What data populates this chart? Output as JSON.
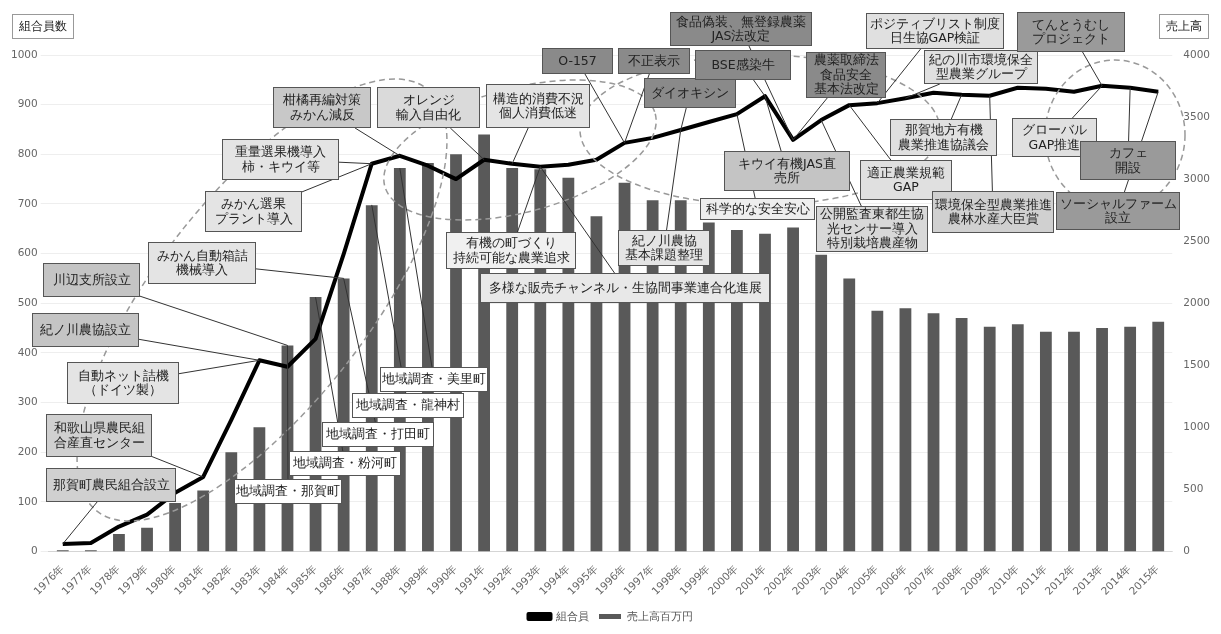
{
  "chart_data": {
    "type": "bar",
    "ylabel": "組合員数",
    "y2label": "売上高",
    "categories": [
      "1976年",
      "1977年",
      "1978年",
      "1979年",
      "1980年",
      "1981年",
      "1982年",
      "1983年",
      "1984年",
      "1985年",
      "1986年",
      "1987年",
      "1988年",
      "1989年",
      "1990年",
      "1991年",
      "1992年",
      "1993年",
      "1994年",
      "1995年",
      "1996年",
      "1997年",
      "1998年",
      "1999年",
      "2000年",
      "2001年",
      "2002年",
      "2003年",
      "2004年",
      "2005年",
      "2006年",
      "2007年",
      "2008年",
      "2009年",
      "2010年",
      "2011年",
      "2012年",
      "2013年",
      "2014年",
      "2015年"
    ],
    "series": [
      {
        "name": "売上高百万円",
        "axis": "y2",
        "color": "#595959",
        "values": [
          10,
          10,
          140,
          190,
          390,
          490,
          800,
          1000,
          1660,
          2050,
          2200,
          2790,
          3090,
          3130,
          3200,
          3360,
          3090,
          3080,
          3010,
          2700,
          2970,
          2830,
          2830,
          2650,
          2590,
          2560,
          2610,
          2390,
          2200,
          1940,
          1960,
          1920,
          1880,
          1810,
          1830,
          1770,
          1770,
          1800,
          1810,
          1850
        ]
      },
      {
        "name": "組合員",
        "type": "line",
        "color": "#000000",
        "values": [
          15,
          17,
          50,
          74,
          118,
          150,
          265,
          385,
          372,
          428,
          599,
          781,
          797,
          777,
          750,
          789,
          781,
          775,
          779,
          789,
          823,
          833,
          849,
          865,
          881,
          917,
          829,
          869,
          899,
          903,
          913,
          924,
          920,
          918,
          934,
          932,
          926,
          938,
          934,
          926
        ]
      }
    ],
    "ylim": [
      0,
      1000
    ],
    "yticks": [
      0,
      100,
      200,
      300,
      400,
      500,
      600,
      700,
      800,
      900,
      1000
    ],
    "y2lim": [
      0,
      4000
    ],
    "y2ticks": [
      0,
      500,
      1000,
      1500,
      2000,
      2500,
      3000,
      3500,
      4000
    ],
    "grid": "y",
    "legend": "bottom",
    "marker": "none",
    "annotations": [
      {
        "text": "那賀町農民組合設立",
        "x": "1976年",
        "y": 15
      },
      {
        "text": "和歌山県農民組合産直センター",
        "x": "1981年",
        "y": 150
      },
      {
        "text": "自動ネット詰機（ドイツ製）",
        "x": "1983年",
        "y": 385
      },
      {
        "text": "紀ノ川農協設立",
        "x": "1983年",
        "y": 385
      },
      {
        "text": "川辺支所設立",
        "x": "1984年",
        "y": 415
      },
      {
        "text": "みかん自動箱詰機械導入",
        "x": "1986年",
        "y": 550
      },
      {
        "text": "みかん選果プラント導入",
        "x": "1987年",
        "y": 781
      },
      {
        "text": "重量選果機導入柿・キウイ等",
        "x": "1987年",
        "y": 781
      },
      {
        "text": "柑橘再編対策みかん減反",
        "x": "1988年",
        "y": 797
      },
      {
        "text": "オレンジ輸入自由化",
        "x": "1991年",
        "y": 789
      },
      {
        "text": "構造的消費不況個人消費低迷",
        "x": "1992年",
        "y": 781
      },
      {
        "text": "有機の町づくり持続可能な農業追求",
        "x": "1993年",
        "y": 775
      },
      {
        "text": "多様な販売チャンネル・生協間事業連合化進展",
        "x": "1993年",
        "y": 775
      },
      {
        "text": "O-157",
        "x": "1996年",
        "y": 823
      },
      {
        "text": "不正表示",
        "x": "1996年",
        "y": 823
      },
      {
        "text": "ダイオキシン",
        "x": "1998年",
        "y": 849
      },
      {
        "text": "紀ノ川農協基本課題整理",
        "x": "1998年",
        "y": 849
      },
      {
        "text": "科学的な安全安心",
        "x": "2000年",
        "y": 881
      },
      {
        "text": "キウイ有機JAS直売所",
        "x": "2001年",
        "y": 917
      },
      {
        "text": "BSE感染牛",
        "x": "2001年",
        "y": 917
      },
      {
        "text": "食品偽装、無登録農薬JAS法改定",
        "x": "2002年",
        "y": 829
      },
      {
        "text": "農薬取締法食品安全基本法改定",
        "x": "2002年",
        "y": 829
      },
      {
        "text": "公開監査東都生協光センサー導入特別栽培農産物",
        "x": "2003年",
        "y": 869
      },
      {
        "text": "適正農業規範GAP",
        "x": "2004年",
        "y": 899
      },
      {
        "text": "ポジティブリスト制度日生協GAP検証",
        "x": "2005年",
        "y": 903
      },
      {
        "text": "紀の川市環境保全型農業グループ",
        "x": "2006年",
        "y": 913
      },
      {
        "text": "那賀地方有機農業推進協議会",
        "x": "2008年",
        "y": 920
      },
      {
        "text": "環境保全型農業推進農林水産大臣賞",
        "x": "2009年",
        "y": 918
      },
      {
        "text": "グローバルGAP推進",
        "x": "2013年",
        "y": 938
      },
      {
        "text": "てんとうむしプロジェクト",
        "x": "2013年",
        "y": 938
      },
      {
        "text": "カフェ開設",
        "x": "2014年",
        "y": 934
      },
      {
        "text": "ソーシャルファーム設立",
        "x": "2015年",
        "y": 926
      },
      {
        "text": "地域調査・那賀町",
        "x": "1984年",
        "y": 415
      },
      {
        "text": "地域調査・粉河町",
        "x": "1985年",
        "y": 512
      },
      {
        "text": "地域調査・打田町",
        "x": "1986年",
        "y": 550
      },
      {
        "text": "地域調査・龍神村",
        "x": "1987年",
        "y": 698
      },
      {
        "text": "地域調査・美里町",
        "x": "1988年",
        "y": 772
      }
    ]
  }
}
